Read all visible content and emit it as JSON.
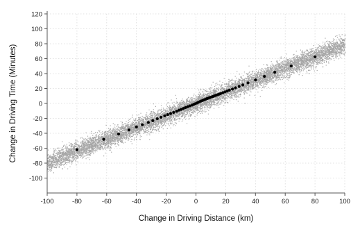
{
  "chart_data": {
    "type": "scatter",
    "title": "",
    "xlabel": "Change in Driving Distance (km)",
    "ylabel": "Change in Driving Time (Minutes)",
    "xlim": [
      -100,
      100
    ],
    "ylim": [
      -120,
      120
    ],
    "x_ticks": [
      -100,
      -80,
      -60,
      -40,
      -20,
      0,
      20,
      40,
      60,
      80,
      100
    ],
    "y_ticks": [
      -100,
      -80,
      -60,
      -40,
      -20,
      0,
      20,
      40,
      60,
      80,
      100,
      120
    ],
    "x_tick_labels": [
      "-100",
      "-80",
      "-60",
      "-40",
      "-20",
      "0",
      "20",
      "40",
      "60",
      "80",
      "100"
    ],
    "y_tick_labels": [
      "-100",
      "-80",
      "-60",
      "-40",
      "-20",
      "0",
      "20",
      "40",
      "60",
      "80",
      "100",
      "120"
    ],
    "grid": true,
    "legend": "none",
    "colors": {
      "raw_points": "#a6a6a6",
      "binned_means": "#000000",
      "grid": "#d9d9d9",
      "axis": "#555555"
    },
    "series": [
      {
        "name": "",
        "style": "dense grey raw observations along a band",
        "trend": {
          "slope": 0.79,
          "intercept": 0,
          "band_halfwidth": 12,
          "x_range": [
            -100,
            100
          ]
        }
      },
      {
        "name": "",
        "style": "black binned means",
        "x": [
          -80,
          -62,
          -52,
          -45,
          -40,
          -36,
          -32,
          -29,
          -26,
          -23.5,
          -21,
          -19,
          -17,
          -15,
          -13,
          -11.5,
          -10,
          -8.5,
          -7,
          -5.5,
          -4,
          -2.5,
          -1.5,
          -0.5,
          0.5,
          1.5,
          2.5,
          3.5,
          4.5,
          5.5,
          6.5,
          7.5,
          8.5,
          9.5,
          10.5,
          11.5,
          12.5,
          13.5,
          14.5,
          15.5,
          16.5,
          18,
          19.5,
          21,
          22.5,
          24.5,
          26.5,
          29,
          31.5,
          35,
          40,
          46,
          53,
          64,
          80
        ],
        "y": [
          -62,
          -48,
          -41,
          -35.5,
          -31.5,
          -28.5,
          -25.5,
          -23,
          -20.5,
          -18.5,
          -16.5,
          -15,
          -13.5,
          -12,
          -10.5,
          -9,
          -8,
          -6.7,
          -5.5,
          -4.3,
          -3.2,
          -2.1,
          -1.2,
          -0.4,
          0.5,
          1.5,
          2.4,
          3.3,
          4.1,
          4.9,
          5.7,
          6.5,
          7.2,
          8,
          8.7,
          9.4,
          10.2,
          10.9,
          11.6,
          12.4,
          13.1,
          14.3,
          15.4,
          16.6,
          17.8,
          19.3,
          20.9,
          22.8,
          24.8,
          27.5,
          31.5,
          36.3,
          41.8,
          50.2,
          62.5
        ]
      }
    ]
  }
}
